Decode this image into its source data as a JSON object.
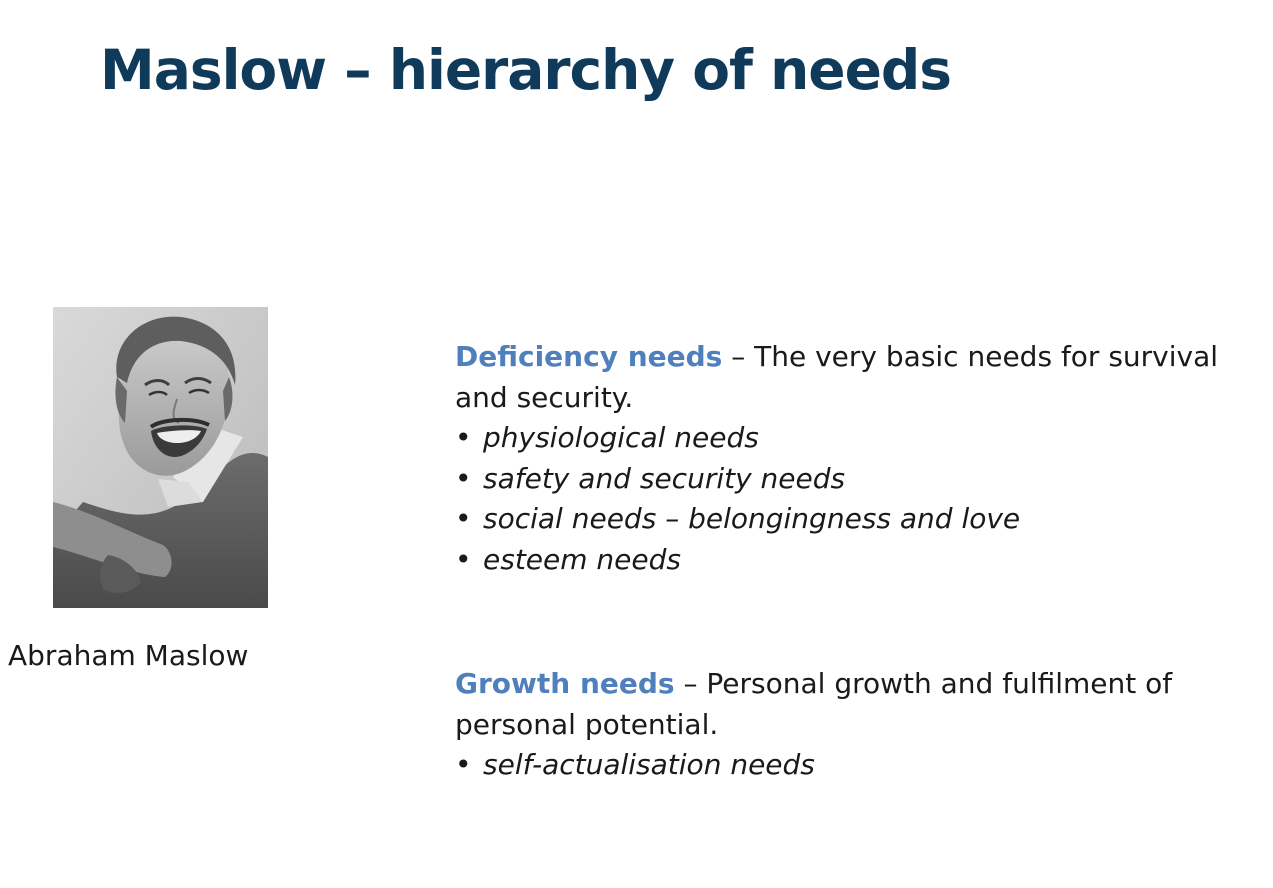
{
  "slide": {
    "title": "Maslow – hierarchy of needs"
  },
  "portrait": {
    "caption": "Abraham Maslow"
  },
  "deficiency": {
    "heading": "Deficiency needs",
    "description": " – The very basic needs for survival and security.",
    "items": [
      "physiological needs",
      "safety and security needs",
      "social needs – belongingness and love",
      "esteem needs"
    ]
  },
  "growth": {
    "heading": "Growth needs",
    "description": " – Personal growth and fulfilment of personal potential.",
    "items": [
      "self-actualisation needs"
    ]
  },
  "bullet_symbol": "•",
  "colors": {
    "title": "#0f3a5a",
    "heading_accent": "#4f7fbd",
    "body_text": "#1a1a1a",
    "background": "#ffffff"
  }
}
